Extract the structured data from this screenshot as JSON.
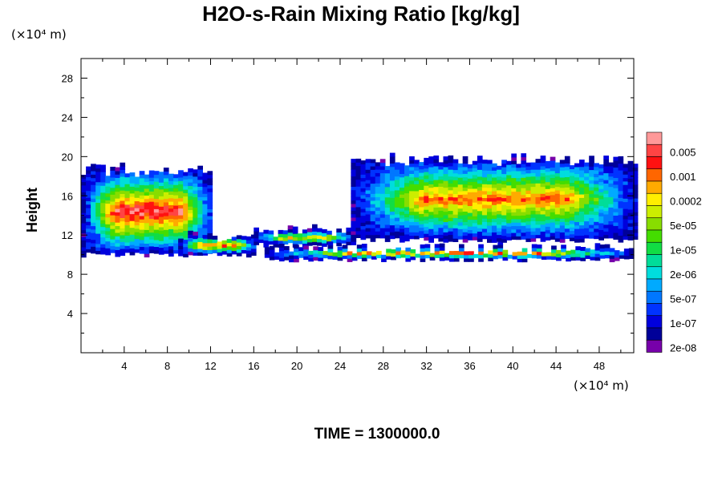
{
  "chart_data": {
    "type": "heatmap",
    "title": "H2O-s-Rain Mixing Ratio [kg/kg]",
    "ylabel": "Height",
    "x_unit_label": "(×10⁴ m)",
    "y_unit_label": "(×10⁴ m)",
    "x_ticks": [
      4,
      8,
      12,
      16,
      20,
      24,
      28,
      32,
      36,
      40,
      44,
      48
    ],
    "y_ticks": [
      4,
      8,
      12,
      16,
      20,
      24,
      28
    ],
    "xlim": [
      0,
      51.2
    ],
    "ylim": [
      0,
      30
    ],
    "legend": {
      "labels": [
        "0.005",
        "0.001",
        "0.0002",
        "5e-05",
        "1e-05",
        "2e-06",
        "5e-07",
        "1e-07",
        "2e-08"
      ],
      "colors": [
        "#ff9999",
        "#ff4444",
        "#ff1111",
        "#ff6600",
        "#ffaa00",
        "#ffee00",
        "#ccee00",
        "#88dd00",
        "#44dd00",
        "#11dd44",
        "#00dd99",
        "#00dddd",
        "#00aaff",
        "#0077ff",
        "#0033ff",
        "#0000dd",
        "#000099",
        "#7700aa"
      ]
    },
    "field_regions": [
      {
        "x0": 0,
        "x1": 12,
        "y_bottom": 10,
        "y_top": 18.5,
        "peak": 0.0055
      },
      {
        "x0": 9,
        "x1": 16,
        "y_bottom": 10,
        "y_top": 11.6,
        "peak": 0.001
      },
      {
        "x0": 16,
        "x1": 25,
        "y_bottom": 11,
        "y_top": 12.2,
        "peak": 0.0002
      },
      {
        "x0": 17,
        "x1": 51.2,
        "y_bottom": 9.5,
        "y_top": 10.5,
        "peak": 0.0008
      },
      {
        "x0": 25,
        "x1": 51.2,
        "y_bottom": 11.5,
        "y_top": 19.5,
        "peak": 0.0009
      }
    ],
    "footer": "TIME = 1300000.0"
  }
}
